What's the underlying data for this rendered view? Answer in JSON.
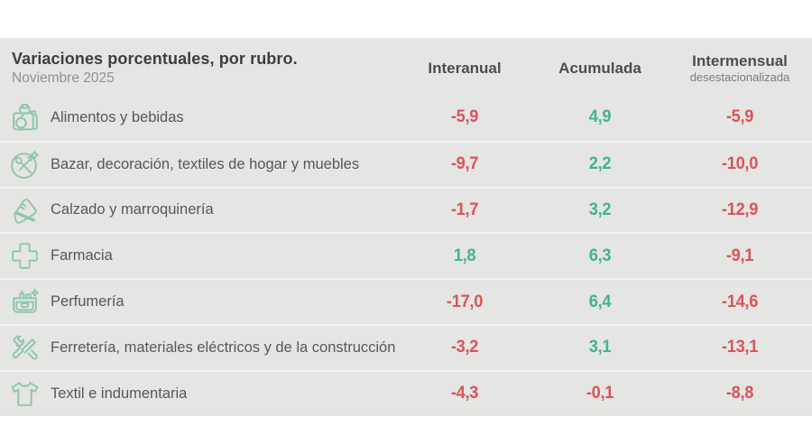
{
  "panel": {
    "title": "Variaciones porcentuales, por rubro.",
    "subtitle": "Noviembre 2025"
  },
  "columns": [
    {
      "label": "Interanual",
      "sublabel": ""
    },
    {
      "label": "Acumulada",
      "sublabel": ""
    },
    {
      "label": "Intermensual",
      "sublabel": "desestacionalizada"
    }
  ],
  "colors": {
    "panel_bg": "#e5e5e3",
    "positive": "#42b48d",
    "negative": "#d9545a",
    "icon_green": "#8fc7ad",
    "title_text": "#3e3e3e",
    "label_text": "#575757"
  },
  "rows": [
    {
      "icon": "groceries-icon",
      "label": "Alimentos y bebidas",
      "interanual": "-5,9",
      "acumulada": "4,9",
      "intermensual": "-5,9"
    },
    {
      "icon": "bazar-icon",
      "label": "Bazar, decoración, textiles de hogar y muebles",
      "interanual": "-9,7",
      "acumulada": "2,2",
      "intermensual": "-10,0"
    },
    {
      "icon": "shoe-icon",
      "label": "Calzado y marroquinería",
      "interanual": "-1,7",
      "acumulada": "3,2",
      "intermensual": "-12,9"
    },
    {
      "icon": "pharmacy-cross-icon",
      "label": "Farmacia",
      "interanual": "1,8",
      "acumulada": "6,3",
      "intermensual": "-9,1"
    },
    {
      "icon": "perfume-bag-icon",
      "label": "Perfumería",
      "interanual": "-17,0",
      "acumulada": "6,4",
      "intermensual": "-14,6"
    },
    {
      "icon": "tools-icon",
      "label": "Ferretería, materiales eléctricos y de la construcción",
      "interanual": "-3,2",
      "acumulada": "3,1",
      "intermensual": "-13,1"
    },
    {
      "icon": "tshirt-icon",
      "label": "Textil e indumentaria",
      "interanual": "-4,3",
      "acumulada": "-0,1",
      "intermensual": "-8,8"
    }
  ],
  "chart_data": {
    "type": "table",
    "title": "Variaciones porcentuales, por rubro.",
    "subtitle": "Noviembre 2025",
    "columns": [
      "Interanual",
      "Acumulada",
      "Intermensual desestacionalizada"
    ],
    "categories": [
      "Alimentos y bebidas",
      "Bazar, decoración, textiles de hogar y muebles",
      "Calzado y marroquinería",
      "Farmacia",
      "Perfumería",
      "Ferretería, materiales eléctricos y de la construcción",
      "Textil e indumentaria"
    ],
    "series": [
      {
        "name": "Interanual",
        "values": [
          -5.9,
          -9.7,
          -1.7,
          1.8,
          -17.0,
          -3.2,
          -4.3
        ]
      },
      {
        "name": "Acumulada",
        "values": [
          4.9,
          2.2,
          3.2,
          6.3,
          6.4,
          3.1,
          -0.1
        ]
      },
      {
        "name": "Intermensual desestacionalizada",
        "values": [
          -5.9,
          -10.0,
          -12.9,
          -9.1,
          -14.6,
          -13.1,
          -8.8
        ]
      }
    ],
    "value_formatting": "decimal comma, one decimal place",
    "color_rule": "negative values red (#d9545a), positive values green (#42b48d)"
  }
}
